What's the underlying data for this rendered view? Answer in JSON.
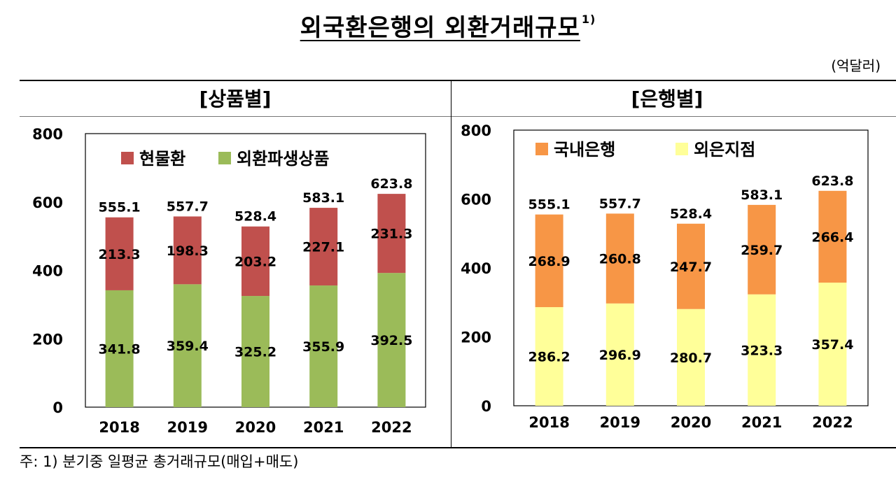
{
  "title": "외국환은행의 외환거래규모",
  "title_note": "1)",
  "unit": "(억달러)",
  "footnote": "주: 1) 분기중 일평균 총거래규모(매입+매도)",
  "chart_data": [
    {
      "type": "bar",
      "stacked": true,
      "title": "[상품별]",
      "categories": [
        "2018",
        "2019",
        "2020",
        "2021",
        "2022"
      ],
      "series": [
        {
          "name": "외환파생상품",
          "color": "#9BBB59",
          "values": [
            341.8,
            359.4,
            325.2,
            355.9,
            392.5
          ]
        },
        {
          "name": "현물환",
          "color": "#C0504D",
          "values": [
            213.3,
            198.3,
            203.2,
            227.1,
            231.3
          ]
        }
      ],
      "totals": [
        555.1,
        557.7,
        528.4,
        583.1,
        623.8
      ],
      "ylim": [
        0,
        800
      ],
      "yticks": [
        0,
        200,
        400,
        600,
        800
      ],
      "legend": "top-left",
      "grid": false
    },
    {
      "type": "bar",
      "stacked": true,
      "title": "[은행별]",
      "categories": [
        "2018",
        "2019",
        "2020",
        "2021",
        "2022"
      ],
      "series": [
        {
          "name": "외은지점",
          "color": "#FFFF99",
          "values": [
            286.2,
            296.9,
            280.7,
            323.3,
            357.4
          ]
        },
        {
          "name": "국내은행",
          "color": "#F79646",
          "values": [
            268.9,
            260.8,
            247.7,
            259.7,
            266.4
          ]
        }
      ],
      "totals": [
        555.1,
        557.7,
        528.4,
        583.1,
        623.8
      ],
      "ylim": [
        0,
        800
      ],
      "yticks": [
        0,
        200,
        400,
        600,
        800
      ],
      "legend": "top-left",
      "grid": false
    }
  ]
}
